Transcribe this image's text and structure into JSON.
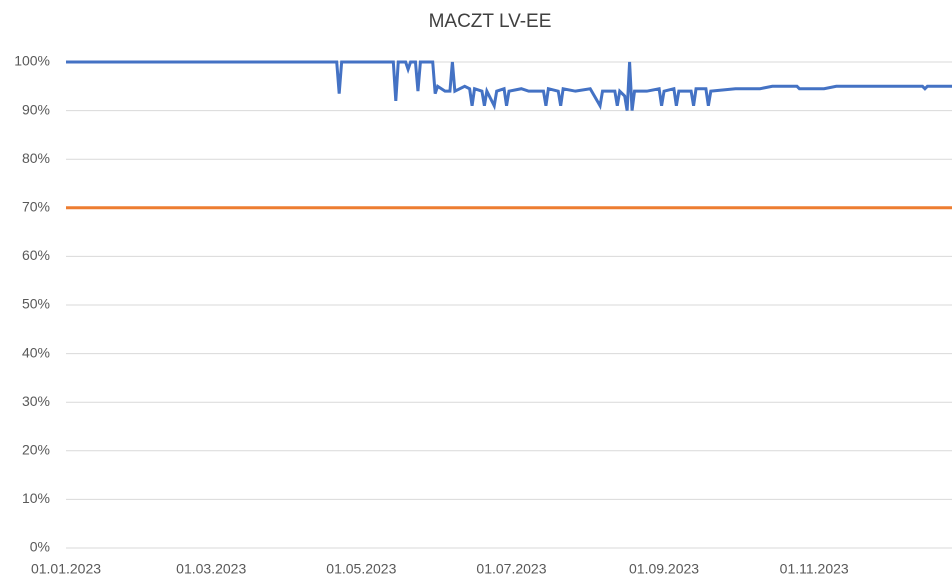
{
  "chart_data": {
    "type": "line",
    "title": "MACZT LV-EE",
    "x": [
      "2023-01-01",
      "2023-04-21",
      "2023-04-22",
      "2023-04-23",
      "2023-05-14",
      "2023-05-15",
      "2023-05-16",
      "2023-05-19",
      "2023-05-20",
      "2023-05-21",
      "2023-05-23",
      "2023-05-24",
      "2023-05-25",
      "2023-05-30",
      "2023-05-31",
      "2023-06-01",
      "2023-06-04",
      "2023-06-06",
      "2023-06-07",
      "2023-06-08",
      "2023-06-12",
      "2023-06-14",
      "2023-06-15",
      "2023-06-16",
      "2023-06-19",
      "2023-06-20",
      "2023-06-21",
      "2023-06-24",
      "2023-06-25",
      "2023-06-28",
      "2023-06-29",
      "2023-06-30",
      "2023-07-05",
      "2023-07-08",
      "2023-07-14",
      "2023-07-15",
      "2023-07-16",
      "2023-07-20",
      "2023-07-21",
      "2023-07-22",
      "2023-07-27",
      "2023-08-02",
      "2023-08-06",
      "2023-08-07",
      "2023-08-12",
      "2023-08-13",
      "2023-08-14",
      "2023-08-16",
      "2023-08-17",
      "2023-08-18",
      "2023-08-19",
      "2023-08-20",
      "2023-08-25",
      "2023-08-30",
      "2023-08-31",
      "2023-09-01",
      "2023-09-05",
      "2023-09-06",
      "2023-09-07",
      "2023-09-12",
      "2023-09-13",
      "2023-09-14",
      "2023-09-18",
      "2023-09-19",
      "2023-09-20",
      "2023-09-30",
      "2023-10-10",
      "2023-10-15",
      "2023-10-25",
      "2023-10-26",
      "2023-11-05",
      "2023-11-10",
      "2023-12-10",
      "2023-12-15",
      "2023-12-16",
      "2023-12-17",
      "2023-12-27"
    ],
    "series": [
      {
        "color": "#4472c4",
        "values": [
          100,
          100,
          93.5,
          100,
          100,
          92,
          100,
          100,
          98.5,
          100,
          100,
          94,
          100,
          100,
          93.5,
          95,
          94,
          94,
          100,
          94,
          95,
          94.5,
          91,
          94.5,
          94,
          91,
          94,
          91,
          94,
          94.5,
          91,
          94,
          94.5,
          94,
          94,
          91,
          94.5,
          94,
          91,
          94.5,
          94,
          94.5,
          91,
          94,
          94,
          91,
          94,
          93,
          90,
          100,
          90,
          94,
          94,
          94.5,
          91,
          94,
          94.5,
          91,
          94,
          94,
          91,
          94.5,
          94.5,
          91,
          94,
          94.5,
          94.5,
          95,
          95,
          94.5,
          94.5,
          95,
          95,
          95,
          94.5,
          95,
          95
        ]
      },
      {
        "color": "#ed7d31",
        "values": [
          70,
          70,
          70,
          70,
          70,
          70,
          70,
          70,
          70,
          70,
          70,
          70,
          70,
          70,
          70,
          70,
          70,
          70,
          70,
          70,
          70,
          70,
          70,
          70,
          70,
          70,
          70,
          70,
          70,
          70,
          70,
          70,
          70,
          70,
          70,
          70,
          70,
          70,
          70,
          70,
          70,
          70,
          70,
          70,
          70,
          70,
          70,
          70,
          70,
          70,
          70,
          70,
          70,
          70,
          70,
          70,
          70,
          70,
          70,
          70,
          70,
          70,
          70,
          70,
          70,
          70,
          70,
          70,
          70,
          70,
          70,
          70,
          70,
          70,
          70,
          70,
          70
        ]
      }
    ],
    "xlim": [
      "2023-01-01",
      "2023-12-27"
    ],
    "xticks": [
      {
        "value": "2023-01-01",
        "label": "01.01.2023"
      },
      {
        "value": "2023-03-01",
        "label": "01.03.2023"
      },
      {
        "value": "2023-05-01",
        "label": "01.05.2023"
      },
      {
        "value": "2023-07-01",
        "label": "01.07.2023"
      },
      {
        "value": "2023-09-01",
        "label": "01.09.2023"
      },
      {
        "value": "2023-11-01",
        "label": "01.11.2023"
      }
    ],
    "ylim": [
      0,
      100
    ],
    "yticks": [
      {
        "value": 0,
        "label": "0%"
      },
      {
        "value": 10,
        "label": "10%"
      },
      {
        "value": 20,
        "label": "20%"
      },
      {
        "value": 30,
        "label": "30%"
      },
      {
        "value": 40,
        "label": "40%"
      },
      {
        "value": 50,
        "label": "50%"
      },
      {
        "value": 60,
        "label": "60%"
      },
      {
        "value": 70,
        "label": "70%"
      },
      {
        "value": 80,
        "label": "80%"
      },
      {
        "value": 90,
        "label": "90%"
      },
      {
        "value": 100,
        "label": "100%"
      }
    ],
    "grid": true
  }
}
